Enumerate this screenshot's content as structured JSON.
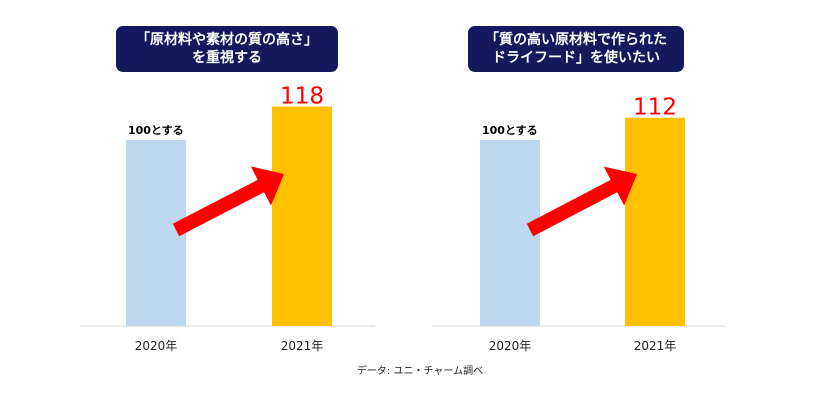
{
  "chart_data": [
    {
      "type": "bar",
      "title_lines": [
        "「原材料や素材の質の高さ」",
        "を重視する"
      ],
      "categories": [
        "2020年",
        "2021年"
      ],
      "values": [
        100,
        118
      ],
      "data_labels": [
        "100とする",
        "118"
      ],
      "ylim": [
        0,
        130
      ],
      "grid": false,
      "colors": [
        "#bdd7ee",
        "#ffc000"
      ]
    },
    {
      "type": "bar",
      "title_lines": [
        "「質の高い原材料で作られた",
        "ドライフード」を使いたい"
      ],
      "categories": [
        "2020年",
        "2021年"
      ],
      "values": [
        100,
        112
      ],
      "data_labels": [
        "100とする",
        "112"
      ],
      "ylim": [
        0,
        130
      ],
      "grid": false,
      "colors": [
        "#bdd7ee",
        "#ffc000"
      ]
    }
  ],
  "source": "データ: ユニ・チャーム調べ",
  "colors": {
    "title_background": "#14195e",
    "highlight_label": "#ff0000",
    "arrow": "#ff0000",
    "baseline": "#d9d9d9"
  }
}
